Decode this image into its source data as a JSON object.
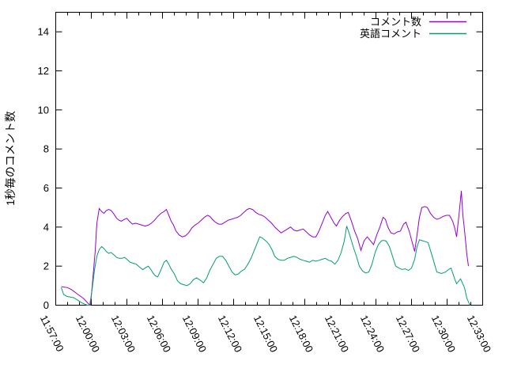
{
  "chart_data": {
    "type": "line",
    "title": "",
    "xlabel": "",
    "ylabel": "1秒毎のコメント数",
    "x_tick_labels": [
      "11:57:00",
      "12:00:00",
      "12:03:00",
      "12:06:00",
      "12:09:00",
      "12:12:00",
      "12:15:00",
      "12:18:00",
      "12:21:00",
      "12:24:00",
      "12:27:00",
      "12:30:00",
      "12:33:00"
    ],
    "y_tick_labels": [
      "0",
      "2",
      "4",
      "6",
      "8",
      "10",
      "12",
      "14"
    ],
    "y_range": [
      0,
      15
    ],
    "x_range_seconds": [
      0,
      2160
    ],
    "x_minor_tick_seconds": 60,
    "x_major_tick_seconds": 180,
    "grid": false,
    "legend_position": "top-right-inside",
    "background_color": "#ffffff",
    "axis_color": "#000000",
    "series": [
      {
        "name": "コメント数",
        "color": "#9400d3",
        "points": [
          [
            28,
            0.95
          ],
          [
            60,
            0.9
          ],
          [
            80,
            0.8
          ],
          [
            112,
            0.55
          ],
          [
            140,
            0.35
          ],
          [
            168,
            0.05
          ],
          [
            176,
            0
          ],
          [
            188,
            1.4
          ],
          [
            200,
            2.8
          ],
          [
            208,
            4.2
          ],
          [
            220,
            4.95
          ],
          [
            232,
            4.8
          ],
          [
            244,
            4.7
          ],
          [
            256,
            4.85
          ],
          [
            268,
            4.9
          ],
          [
            280,
            4.85
          ],
          [
            292,
            4.7
          ],
          [
            308,
            4.45
          ],
          [
            320,
            4.35
          ],
          [
            332,
            4.3
          ],
          [
            348,
            4.4
          ],
          [
            360,
            4.45
          ],
          [
            372,
            4.3
          ],
          [
            388,
            4.15
          ],
          [
            404,
            4.2
          ],
          [
            420,
            4.15
          ],
          [
            436,
            4.1
          ],
          [
            452,
            4.05
          ],
          [
            468,
            4.1
          ],
          [
            484,
            4.2
          ],
          [
            500,
            4.35
          ],
          [
            516,
            4.55
          ],
          [
            532,
            4.7
          ],
          [
            548,
            4.8
          ],
          [
            560,
            4.9
          ],
          [
            572,
            4.6
          ],
          [
            584,
            4.3
          ],
          [
            596,
            4.1
          ],
          [
            608,
            3.8
          ],
          [
            624,
            3.6
          ],
          [
            640,
            3.5
          ],
          [
            656,
            3.55
          ],
          [
            672,
            3.7
          ],
          [
            688,
            3.95
          ],
          [
            704,
            4.1
          ],
          [
            720,
            4.2
          ],
          [
            736,
            4.35
          ],
          [
            752,
            4.5
          ],
          [
            768,
            4.6
          ],
          [
            780,
            4.55
          ],
          [
            792,
            4.4
          ],
          [
            808,
            4.25
          ],
          [
            824,
            4.15
          ],
          [
            840,
            4.15
          ],
          [
            856,
            4.25
          ],
          [
            872,
            4.35
          ],
          [
            888,
            4.4
          ],
          [
            904,
            4.45
          ],
          [
            920,
            4.5
          ],
          [
            936,
            4.6
          ],
          [
            952,
            4.75
          ],
          [
            968,
            4.9
          ],
          [
            980,
            4.95
          ],
          [
            996,
            4.9
          ],
          [
            1012,
            4.75
          ],
          [
            1028,
            4.65
          ],
          [
            1044,
            4.6
          ],
          [
            1060,
            4.5
          ],
          [
            1076,
            4.35
          ],
          [
            1092,
            4.2
          ],
          [
            1108,
            4.0
          ],
          [
            1124,
            3.85
          ],
          [
            1140,
            3.7
          ],
          [
            1156,
            3.8
          ],
          [
            1172,
            3.9
          ],
          [
            1188,
            4.0
          ],
          [
            1204,
            3.85
          ],
          [
            1220,
            3.8
          ],
          [
            1236,
            3.85
          ],
          [
            1252,
            3.9
          ],
          [
            1268,
            3.75
          ],
          [
            1284,
            3.6
          ],
          [
            1300,
            3.5
          ],
          [
            1316,
            3.5
          ],
          [
            1332,
            3.8
          ],
          [
            1348,
            4.2
          ],
          [
            1364,
            4.6
          ],
          [
            1376,
            4.8
          ],
          [
            1392,
            4.5
          ],
          [
            1408,
            4.2
          ],
          [
            1420,
            4.05
          ],
          [
            1436,
            4.35
          ],
          [
            1452,
            4.55
          ],
          [
            1468,
            4.7
          ],
          [
            1480,
            4.75
          ],
          [
            1496,
            4.3
          ],
          [
            1512,
            3.8
          ],
          [
            1528,
            3.4
          ],
          [
            1544,
            2.8
          ],
          [
            1560,
            3.3
          ],
          [
            1576,
            3.5
          ],
          [
            1592,
            3.3
          ],
          [
            1608,
            3.1
          ],
          [
            1624,
            3.6
          ],
          [
            1640,
            4.0
          ],
          [
            1656,
            4.5
          ],
          [
            1668,
            4.4
          ],
          [
            1680,
            4.0
          ],
          [
            1696,
            3.7
          ],
          [
            1712,
            3.65
          ],
          [
            1728,
            3.75
          ],
          [
            1744,
            3.8
          ],
          [
            1760,
            4.15
          ],
          [
            1772,
            4.25
          ],
          [
            1788,
            3.8
          ],
          [
            1804,
            3.2
          ],
          [
            1816,
            2.75
          ],
          [
            1828,
            3.6
          ],
          [
            1840,
            4.5
          ],
          [
            1852,
            5.0
          ],
          [
            1868,
            5.05
          ],
          [
            1880,
            5.0
          ],
          [
            1896,
            4.7
          ],
          [
            1912,
            4.5
          ],
          [
            1928,
            4.4
          ],
          [
            1944,
            4.45
          ],
          [
            1960,
            4.55
          ],
          [
            1976,
            4.6
          ],
          [
            1992,
            4.6
          ],
          [
            2008,
            4.3
          ],
          [
            2020,
            3.9
          ],
          [
            2028,
            3.5
          ],
          [
            2040,
            4.6
          ],
          [
            2052,
            5.85
          ],
          [
            2060,
            4.6
          ],
          [
            2068,
            3.85
          ],
          [
            2080,
            2.6
          ],
          [
            2088,
            2.0
          ]
        ]
      },
      {
        "name": "英語コメント",
        "color": "#009e73",
        "points": [
          [
            28,
            0.9
          ],
          [
            40,
            0.55
          ],
          [
            56,
            0.45
          ],
          [
            72,
            0.42
          ],
          [
            92,
            0.38
          ],
          [
            112,
            0.25
          ],
          [
            132,
            0.12
          ],
          [
            148,
            0.05
          ],
          [
            160,
            0
          ],
          [
            172,
            0
          ],
          [
            184,
            0.8
          ],
          [
            196,
            1.8
          ],
          [
            208,
            2.5
          ],
          [
            220,
            2.85
          ],
          [
            232,
            3.0
          ],
          [
            244,
            2.9
          ],
          [
            256,
            2.75
          ],
          [
            268,
            2.65
          ],
          [
            280,
            2.7
          ],
          [
            292,
            2.6
          ],
          [
            308,
            2.45
          ],
          [
            320,
            2.4
          ],
          [
            336,
            2.4
          ],
          [
            348,
            2.45
          ],
          [
            360,
            2.35
          ],
          [
            376,
            2.2
          ],
          [
            392,
            2.15
          ],
          [
            408,
            2.1
          ],
          [
            424,
            1.95
          ],
          [
            440,
            1.82
          ],
          [
            452,
            1.9
          ],
          [
            468,
            2.0
          ],
          [
            480,
            1.85
          ],
          [
            492,
            1.65
          ],
          [
            504,
            1.5
          ],
          [
            516,
            1.45
          ],
          [
            532,
            1.8
          ],
          [
            548,
            2.2
          ],
          [
            560,
            2.3
          ],
          [
            572,
            2.1
          ],
          [
            584,
            1.85
          ],
          [
            600,
            1.6
          ],
          [
            616,
            1.25
          ],
          [
            632,
            1.1
          ],
          [
            648,
            1.05
          ],
          [
            664,
            1.0
          ],
          [
            680,
            1.1
          ],
          [
            696,
            1.3
          ],
          [
            712,
            1.4
          ],
          [
            728,
            1.3
          ],
          [
            748,
            1.15
          ],
          [
            764,
            1.4
          ],
          [
            780,
            1.8
          ],
          [
            796,
            2.1
          ],
          [
            812,
            2.4
          ],
          [
            828,
            2.5
          ],
          [
            844,
            2.5
          ],
          [
            860,
            2.3
          ],
          [
            876,
            2.0
          ],
          [
            892,
            1.7
          ],
          [
            908,
            1.55
          ],
          [
            924,
            1.6
          ],
          [
            940,
            1.75
          ],
          [
            956,
            1.85
          ],
          [
            972,
            2.1
          ],
          [
            988,
            2.4
          ],
          [
            1004,
            2.8
          ],
          [
            1020,
            3.2
          ],
          [
            1032,
            3.5
          ],
          [
            1044,
            3.45
          ],
          [
            1056,
            3.35
          ],
          [
            1068,
            3.25
          ],
          [
            1080,
            3.1
          ],
          [
            1096,
            2.8
          ],
          [
            1108,
            2.5
          ],
          [
            1124,
            2.35
          ],
          [
            1140,
            2.3
          ],
          [
            1156,
            2.3
          ],
          [
            1172,
            2.4
          ],
          [
            1188,
            2.45
          ],
          [
            1204,
            2.5
          ],
          [
            1220,
            2.45
          ],
          [
            1236,
            2.35
          ],
          [
            1252,
            2.3
          ],
          [
            1268,
            2.25
          ],
          [
            1284,
            2.2
          ],
          [
            1300,
            2.3
          ],
          [
            1316,
            2.25
          ],
          [
            1332,
            2.3
          ],
          [
            1348,
            2.35
          ],
          [
            1364,
            2.4
          ],
          [
            1380,
            2.3
          ],
          [
            1396,
            2.25
          ],
          [
            1412,
            2.1
          ],
          [
            1428,
            2.3
          ],
          [
            1444,
            2.7
          ],
          [
            1460,
            3.3
          ],
          [
            1472,
            4.05
          ],
          [
            1484,
            3.7
          ],
          [
            1496,
            3.3
          ],
          [
            1508,
            2.9
          ],
          [
            1520,
            2.55
          ],
          [
            1536,
            2.0
          ],
          [
            1552,
            1.75
          ],
          [
            1568,
            1.65
          ],
          [
            1584,
            1.7
          ],
          [
            1600,
            2.1
          ],
          [
            1616,
            2.7
          ],
          [
            1632,
            3.1
          ],
          [
            1648,
            3.3
          ],
          [
            1660,
            3.32
          ],
          [
            1672,
            3.28
          ],
          [
            1688,
            3.0
          ],
          [
            1704,
            2.5
          ],
          [
            1720,
            2.0
          ],
          [
            1736,
            1.9
          ],
          [
            1752,
            1.83
          ],
          [
            1768,
            1.86
          ],
          [
            1784,
            1.78
          ],
          [
            1800,
            1.9
          ],
          [
            1816,
            2.35
          ],
          [
            1828,
            3.0
          ],
          [
            1840,
            3.35
          ],
          [
            1856,
            3.3
          ],
          [
            1872,
            3.25
          ],
          [
            1884,
            3.2
          ],
          [
            1908,
            2.4
          ],
          [
            1928,
            1.7
          ],
          [
            1952,
            1.62
          ],
          [
            1972,
            1.7
          ],
          [
            1988,
            1.83
          ],
          [
            2000,
            1.9
          ],
          [
            2020,
            1.3
          ],
          [
            2028,
            1.1
          ],
          [
            2048,
            1.35
          ],
          [
            2068,
            0.9
          ],
          [
            2080,
            0.35
          ],
          [
            2096,
            0
          ]
        ]
      }
    ]
  }
}
